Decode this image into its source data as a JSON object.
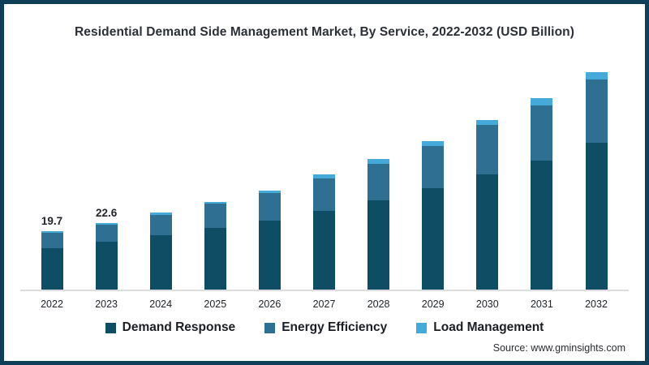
{
  "chart_data": {
    "type": "bar",
    "stacked": true,
    "title": "Residential Demand Side Management Market, By Service, 2022-2032 (USD Billion)",
    "categories": [
      "2022",
      "2023",
      "2024",
      "2025",
      "2026",
      "2027",
      "2028",
      "2029",
      "2030",
      "2031",
      "2032"
    ],
    "series": [
      {
        "name": "Demand Response",
        "color": "#0e4d63",
        "values": [
          13.9,
          16.1,
          18.5,
          20.8,
          23.3,
          26.6,
          30.2,
          34.3,
          39.0,
          43.7,
          49.7
        ]
      },
      {
        "name": "Energy Efficiency",
        "color": "#2f6f92",
        "values": [
          5.3,
          6.0,
          6.9,
          8.2,
          9.4,
          11.0,
          12.4,
          14.4,
          16.8,
          18.7,
          21.4
        ]
      },
      {
        "name": "Load Management",
        "color": "#45a9da",
        "values": [
          0.5,
          0.5,
          0.6,
          0.7,
          0.9,
          1.4,
          1.6,
          1.6,
          1.6,
          2.5,
          2.5
        ]
      }
    ],
    "data_labels": {
      "2022": "19.7",
      "2023": "22.6"
    },
    "legend_position": "bottom",
    "grid": false,
    "y_axis_visible": false
  },
  "source": "Source: www.gminsights.com",
  "frame": {
    "border_color": "#0f3e58",
    "axis_color": "#dcdddd"
  }
}
